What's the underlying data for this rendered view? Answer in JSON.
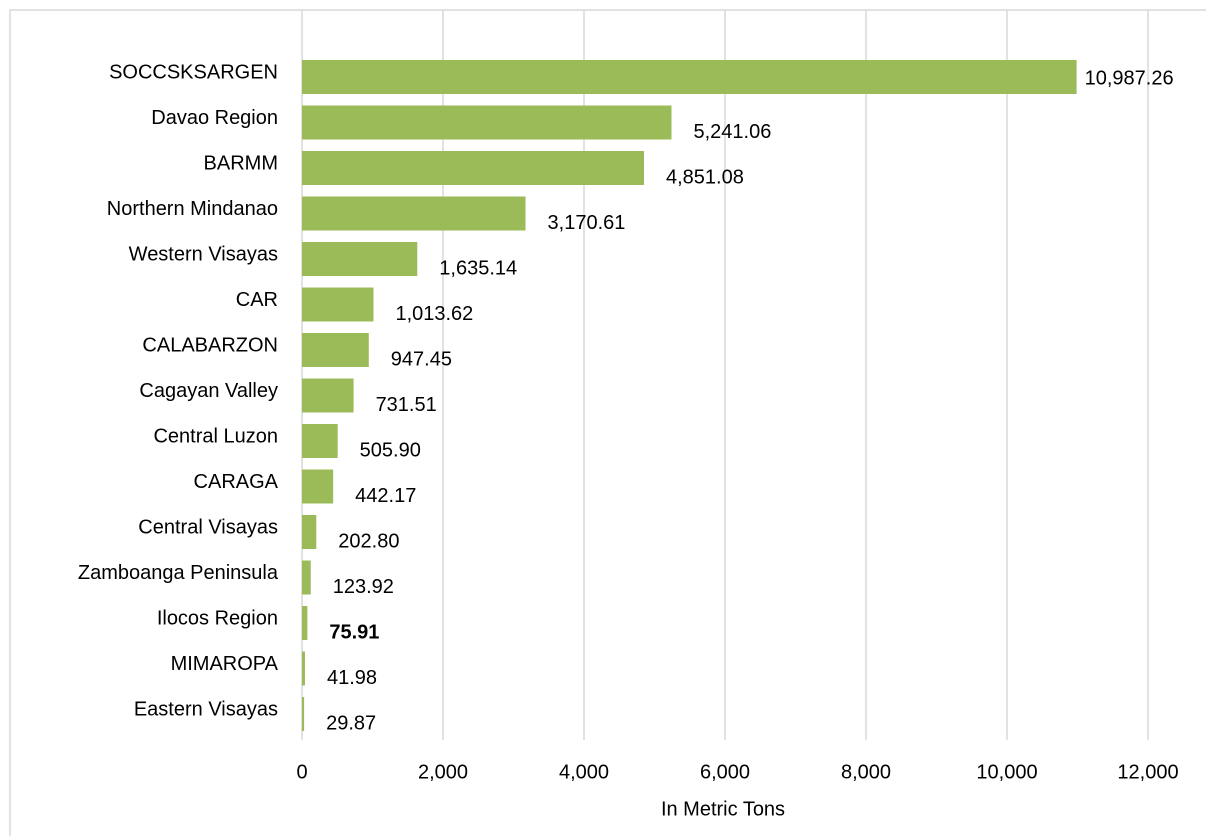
{
  "chart_data": {
    "type": "bar",
    "orientation": "horizontal",
    "categories": [
      "SOCCSKSARGEN",
      "Davao Region",
      "BARMM",
      "Northern Mindanao",
      "Western Visayas",
      "CAR",
      "CALABARZON",
      "Cagayan Valley",
      "Central Luzon",
      "CARAGA",
      "Central Visayas",
      "Zamboanga Peninsula",
      "Ilocos Region",
      "MIMAROPA",
      "Eastern Visayas"
    ],
    "values": [
      10987.26,
      5241.06,
      4851.08,
      3170.61,
      1635.14,
      1013.62,
      947.45,
      731.51,
      505.9,
      442.17,
      202.8,
      123.92,
      75.91,
      41.98,
      29.87
    ],
    "value_labels": [
      "10,987.26",
      "5,241.06",
      "4,851.08",
      "3,170.61",
      "1,635.14",
      "1,013.62",
      "947.45",
      "731.51",
      "505.90",
      "442.17",
      "202.80",
      "123.92",
      "75.91",
      "41.98",
      "29.87"
    ],
    "color": "#9bbb59",
    "xlabel": "In Metric Tons",
    "xlim": [
      0,
      12000
    ],
    "xticks": [
      0,
      {
        "value": 2000,
        "label": "2,000"
      },
      {
        "value": 4000,
        "label": "4,000"
      },
      {
        "value": 6000,
        "label": "6,000"
      },
      {
        "value": 8000,
        "label": "8,000"
      },
      {
        "value": 10000,
        "label": "10,000"
      },
      {
        "value": 12000,
        "label": "12,000"
      }
    ],
    "grid": true
  }
}
